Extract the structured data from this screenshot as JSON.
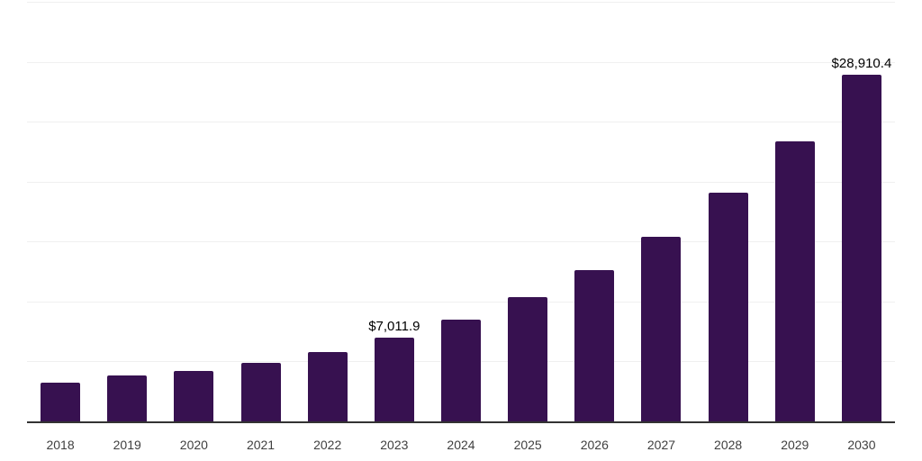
{
  "chart_data": {
    "type": "bar",
    "title": "",
    "categories": [
      "2018",
      "2019",
      "2020",
      "2021",
      "2022",
      "2023",
      "2024",
      "2025",
      "2026",
      "2027",
      "2028",
      "2029",
      "2030"
    ],
    "values": [
      3245,
      3800,
      4200,
      4850,
      5770,
      7011.9,
      8470,
      10340,
      12590,
      15420,
      19040,
      23380,
      28910.4
    ],
    "data_labels": {
      "2023": "$7,011.9",
      "2030": "$28,910.4"
    },
    "ylim": [
      0,
      35000
    ],
    "gridline_interval": 5000,
    "grid": "horizontal-only",
    "legend": "none",
    "y_axis_tick_labels_visible": false,
    "colors": {
      "bar": "#371150",
      "gridline": "#f0f0f0",
      "axis_line": "#333333",
      "data_label": "#000000",
      "tick_label": "#3f3f3f",
      "background": "#ffffff"
    }
  }
}
